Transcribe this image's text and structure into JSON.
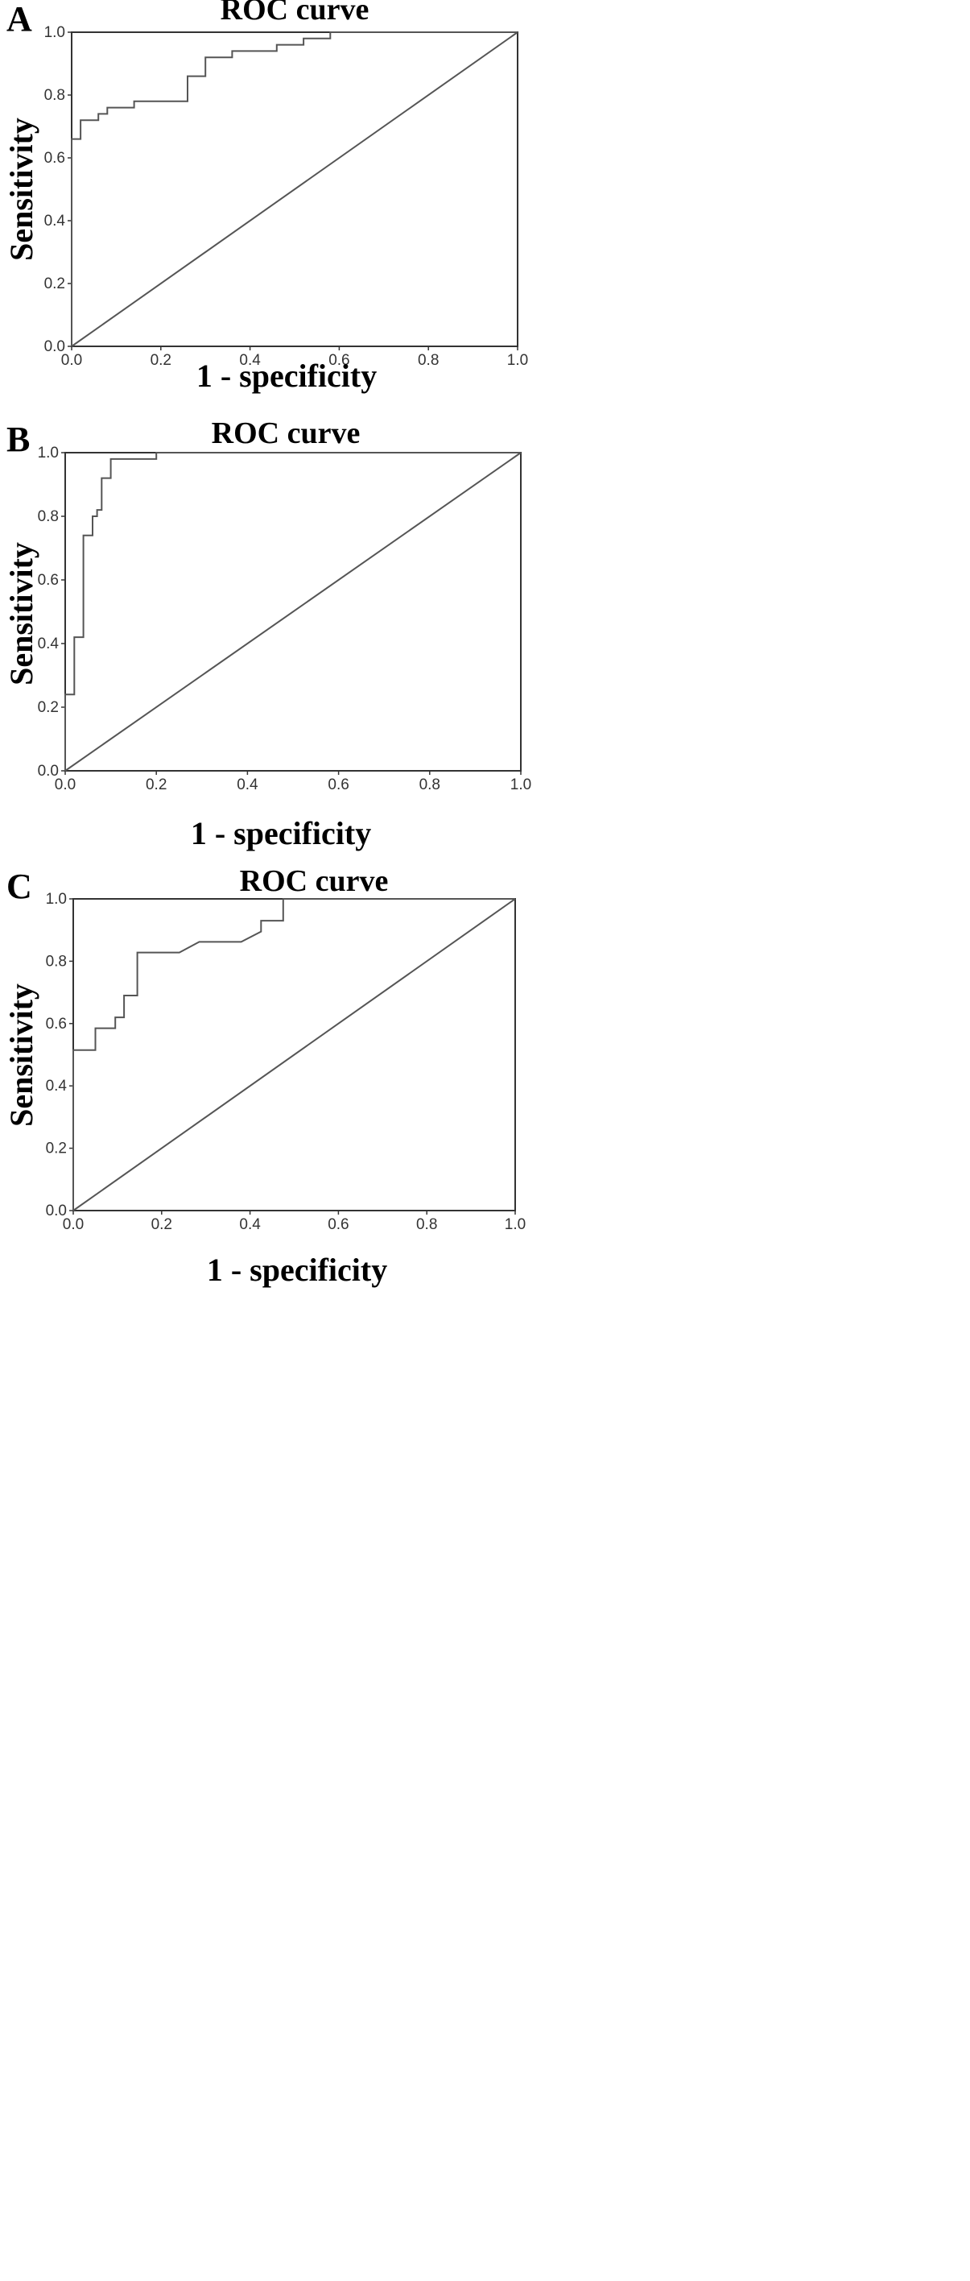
{
  "chart_data": [
    {
      "panel": "A",
      "type": "line",
      "title": "ROC curve",
      "xlabel": "1 - specificity",
      "ylabel": "Sensitivity",
      "xlim": [
        0,
        1
      ],
      "ylim": [
        0,
        1
      ],
      "xticks": [
        "0.0",
        "0.2",
        "0.4",
        "0.6",
        "0.8",
        "1.0"
      ],
      "yticks": [
        "0.0",
        "0.2",
        "0.4",
        "0.6",
        "0.8",
        "1.0"
      ],
      "grid": false,
      "series": [
        {
          "x": [
            0,
            0,
            0.02,
            0.02,
            0.06,
            0.06,
            0.08,
            0.08,
            0.14,
            0.14,
            0.26,
            0.26,
            0.3,
            0.3,
            0.36,
            0.36,
            0.46,
            0.46,
            0.52,
            0.52,
            0.58,
            0.58,
            1.0
          ],
          "y": [
            0,
            0.66,
            0.66,
            0.72,
            0.72,
            0.74,
            0.74,
            0.76,
            0.76,
            0.78,
            0.78,
            0.86,
            0.86,
            0.92,
            0.92,
            0.94,
            0.94,
            0.96,
            0.96,
            0.98,
            0.98,
            1.0,
            1.0
          ]
        },
        {
          "x": [
            0,
            1
          ],
          "y": [
            0,
            1
          ]
        }
      ]
    },
    {
      "panel": "B",
      "type": "line",
      "title": "ROC curve",
      "xlabel": "1 - specificity",
      "ylabel": "Sensitivity",
      "xlim": [
        0,
        1
      ],
      "ylim": [
        0,
        1
      ],
      "xticks": [
        "0.0",
        "0.2",
        "0.4",
        "0.6",
        "0.8",
        "1.0"
      ],
      "yticks": [
        "0.0",
        "0.2",
        "0.4",
        "0.6",
        "0.8",
        "1.0"
      ],
      "grid": false,
      "series": [
        {
          "x": [
            0,
            0,
            0.02,
            0.02,
            0.04,
            0.04,
            0.06,
            0.06,
            0.07,
            0.07,
            0.08,
            0.08,
            0.1,
            0.1,
            0.2,
            0.2,
            1.0
          ],
          "y": [
            0,
            0.24,
            0.24,
            0.42,
            0.42,
            0.74,
            0.74,
            0.8,
            0.8,
            0.82,
            0.82,
            0.92,
            0.92,
            0.98,
            0.98,
            1.0,
            1.0
          ]
        },
        {
          "x": [
            0,
            1
          ],
          "y": [
            0,
            1
          ]
        }
      ]
    },
    {
      "panel": "C",
      "type": "line",
      "title": "ROC curve",
      "xlabel": "1 - specificity",
      "ylabel": "Sensitivity",
      "xlim": [
        0,
        1
      ],
      "ylim": [
        0,
        1
      ],
      "xticks": [
        "0.0",
        "0.2",
        "0.4",
        "0.6",
        "0.8",
        "1.0"
      ],
      "yticks": [
        "0.0",
        "0.2",
        "0.4",
        "0.6",
        "0.8",
        "1.0"
      ],
      "grid": false,
      "series": [
        {
          "x": [
            0,
            0,
            0.05,
            0.05,
            0.095,
            0.095,
            0.115,
            0.115,
            0.145,
            0.145,
            0.24,
            0.285,
            0.38,
            0.425,
            0.425,
            0.475,
            0.475,
            1.0
          ],
          "y": [
            0,
            0.515,
            0.515,
            0.585,
            0.585,
            0.62,
            0.62,
            0.69,
            0.69,
            0.828,
            0.828,
            0.862,
            0.862,
            0.895,
            0.93,
            0.93,
            1.0,
            1.0
          ]
        },
        {
          "x": [
            0,
            1
          ],
          "y": [
            0,
            1
          ]
        }
      ]
    }
  ]
}
